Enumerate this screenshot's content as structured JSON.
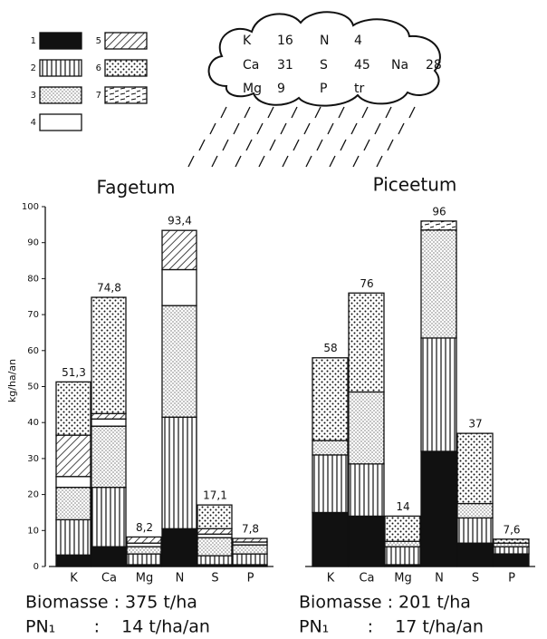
{
  "chart_data": [
    {
      "type": "bar",
      "stacked": true,
      "title": "Fagetum",
      "ylabel": "kg/ha/an",
      "categories": [
        "K",
        "Ca",
        "Mg",
        "N",
        "S",
        "P"
      ],
      "ylim": [
        0,
        100
      ],
      "yticks": [
        0,
        10,
        20,
        30,
        40,
        50,
        60,
        70,
        80,
        90,
        100
      ],
      "series": [
        {
          "name": "1",
          "pattern": "solid",
          "values": [
            3.2,
            5.5,
            0.5,
            10.5,
            0.5,
            0.5
          ]
        },
        {
          "name": "2",
          "pattern": "vertical",
          "values": [
            9.8,
            16.5,
            3,
            31,
            2.5,
            3
          ]
        },
        {
          "name": "3",
          "pattern": "fine-dots",
          "values": [
            9,
            17,
            2,
            31,
            5,
            2.5
          ]
        },
        {
          "name": "4",
          "pattern": "blank",
          "values": [
            3,
            2,
            1,
            10,
            1,
            0.8
          ]
        },
        {
          "name": "5",
          "pattern": "diagonal",
          "values": [
            11.5,
            1.5,
            1.7,
            10.9,
            1.5,
            1
          ]
        },
        {
          "name": "6",
          "pattern": "coarse-dots",
          "values": [
            14.8,
            32.3,
            null,
            null,
            6.6,
            null
          ]
        },
        {
          "name": "7",
          "pattern": "dashes",
          "values": [
            null,
            null,
            null,
            null,
            null,
            null
          ]
        }
      ],
      "totals": [
        51.3,
        74.8,
        8.2,
        93.4,
        17.1,
        7.8
      ],
      "total_labels": [
        "51,3",
        "74,8",
        "8,2",
        "93,4",
        "17,1",
        "7,8"
      ],
      "footer": [
        "Biomasse : 375 t/ha",
        "PN₁       :    14 t/ha/an"
      ],
      "deposition": [
        {
          "element": "K",
          "value": 16
        },
        {
          "element": "N",
          "value": 4
        },
        {
          "element": "Ca",
          "value": 31
        },
        {
          "element": "S",
          "value": 45
        },
        {
          "element": "Na",
          "value": 28
        },
        {
          "element": "Mg",
          "value": 9
        },
        {
          "element": "P",
          "value": "tr"
        }
      ]
    },
    {
      "type": "bar",
      "stacked": true,
      "title": "Piceetum",
      "categories": [
        "K",
        "Ca",
        "Mg",
        "N",
        "S",
        "P"
      ],
      "ylim": [
        0,
        100
      ],
      "series": [
        {
          "pattern": "solid",
          "values": [
            15,
            14,
            0.5,
            32,
            6.5,
            3.5
          ]
        },
        {
          "pattern": "vertical",
          "values": [
            16,
            14.5,
            5,
            31.5,
            7,
            2
          ]
        },
        {
          "pattern": "fine-dots",
          "values": [
            4,
            20,
            1.5,
            30,
            4,
            1
          ]
        },
        {
          "pattern": "blank",
          "values": [
            null,
            null,
            null,
            null,
            null,
            null
          ]
        },
        {
          "pattern": "diagonal",
          "values": [
            null,
            null,
            null,
            null,
            null,
            null
          ]
        },
        {
          "pattern": "coarse-dots",
          "values": [
            23,
            27.5,
            7,
            null,
            19.5,
            1.1
          ]
        },
        {
          "pattern": "dashes",
          "values": [
            null,
            null,
            null,
            2.5,
            null,
            null
          ]
        }
      ],
      "totals": [
        58,
        76,
        14,
        96,
        37,
        7.6
      ],
      "total_labels": [
        "58",
        "76",
        "14",
        "96",
        "37",
        "7,6"
      ],
      "footer": [
        "Biomasse : 201 t/ha",
        "PN₁       :    17 t/ha/an"
      ]
    }
  ]
}
